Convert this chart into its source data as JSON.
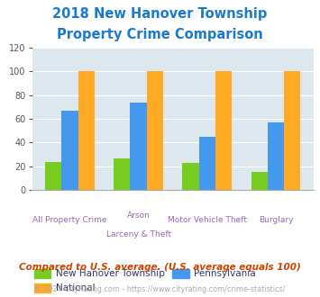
{
  "title_line1": "2018 New Hanover Township",
  "title_line2": "Property Crime Comparison",
  "title_color": "#1a7acc",
  "x_labels_row1": [
    "All Property Crime",
    "Arson",
    "Motor Vehicle Theft",
    "Burglary"
  ],
  "x_labels_row2": [
    "",
    "Larceny & Theft",
    "",
    ""
  ],
  "local_values": [
    24,
    27,
    23,
    15
  ],
  "state_values": [
    67,
    74,
    45,
    57
  ],
  "national_values": [
    100,
    100,
    100,
    100
  ],
  "local_color": "#77cc22",
  "state_color": "#4499ee",
  "national_color": "#ffaa22",
  "ylim": [
    0,
    120
  ],
  "yticks": [
    0,
    20,
    40,
    60,
    80,
    100,
    120
  ],
  "plot_bg_color": "#dce8ee",
  "label_color": "#9966bb",
  "legend_labels": [
    "New Hanover Township",
    "National",
    "Pennsylvania"
  ],
  "footnote1": "Compared to U.S. average. (U.S. average equals 100)",
  "footnote2": "© 2024 CityRating.com - https://www.cityrating.com/crime-statistics/",
  "footnote1_color": "#cc4400",
  "footnote2_color": "#aaaaaa"
}
